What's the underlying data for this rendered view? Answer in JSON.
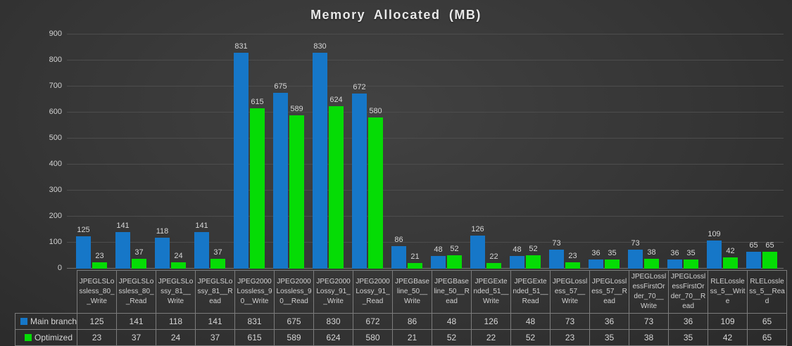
{
  "chart_data": {
    "type": "bar",
    "title": "Memory Allocated (MB)",
    "categories": [
      "JPEGLSLossless_80__Write",
      "JPEGLSLossless_80__Read",
      "JPEGLSLossy_81__Write",
      "JPEGLSLossy_81__Read",
      "JPEG2000Lossless_90__Write",
      "JPEG2000Lossless_90__Read",
      "JPEG2000Lossy_91__Write",
      "JPEG2000Lossy_91__Read",
      "JPEGBaseline_50__Write",
      "JPEGBaseline_50__Read",
      "JPEGExtended_51__Write",
      "JPEGExtended_51__Read",
      "JPEGLossless_57__Write",
      "JPEGLossless_57__Read",
      "JPEGLosslessFirstOrder_70__Write",
      "JPEGLosslessFirstOrder_70__Read",
      "RLELossless_5__Write",
      "RLELossless_5__Read"
    ],
    "series": [
      {
        "name": "Main branch",
        "color": "#1677c8",
        "values": [
          125,
          141,
          118,
          141,
          831,
          675,
          830,
          672,
          86,
          48,
          126,
          48,
          73,
          36,
          73,
          36,
          109,
          65
        ]
      },
      {
        "name": "Optimized",
        "color": "#05dc05",
        "values": [
          23,
          37,
          24,
          37,
          615,
          589,
          624,
          580,
          21,
          52,
          22,
          52,
          23,
          35,
          38,
          35,
          42,
          65
        ]
      }
    ],
    "ylim": [
      0,
      900
    ],
    "y_ticks": [
      0,
      100,
      200,
      300,
      400,
      500,
      600,
      700,
      800,
      900
    ],
    "grid": true,
    "data_labels": true,
    "legend_position": "table-left",
    "data_table_shown": true
  }
}
